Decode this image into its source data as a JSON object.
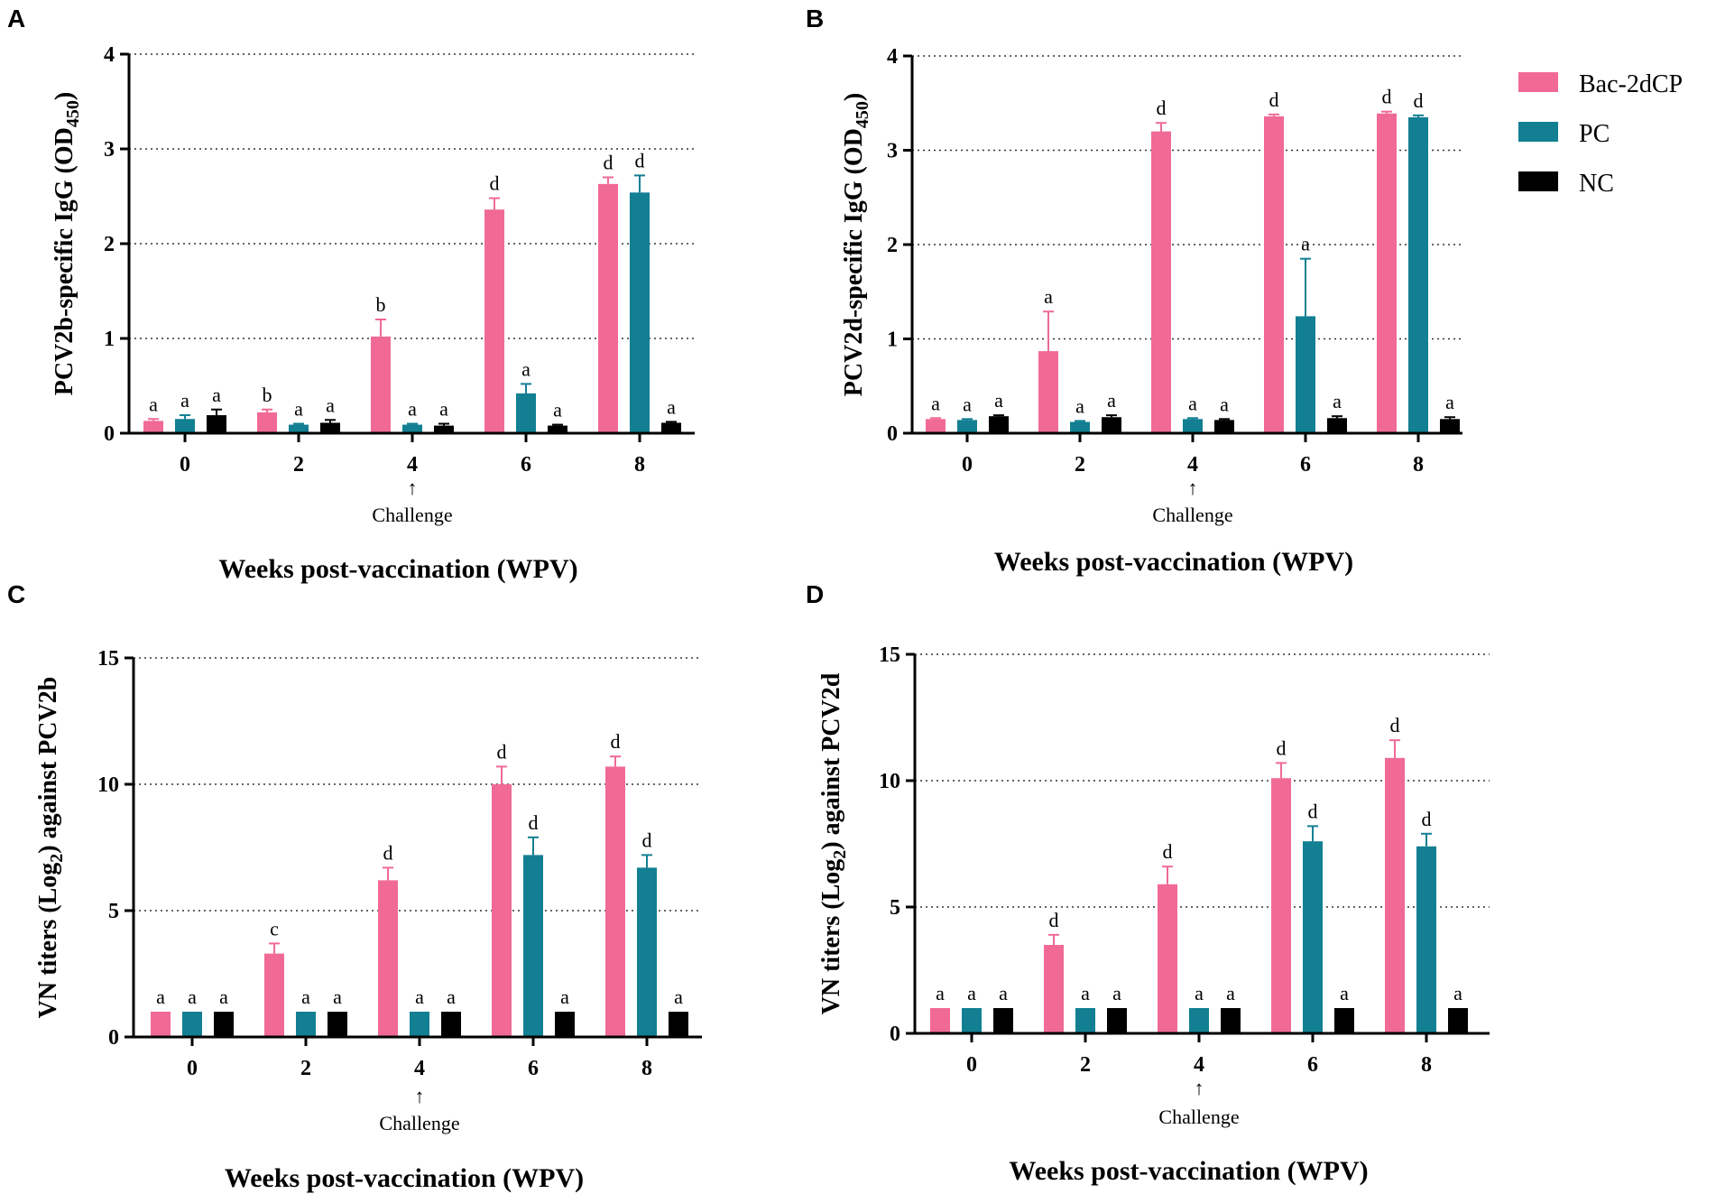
{
  "legend": {
    "items": [
      {
        "name": "Bac-2dCP",
        "color": "#f06a95"
      },
      {
        "name": "PC",
        "color": "#127f92"
      },
      {
        "name": "NC",
        "color": "#000000"
      }
    ]
  },
  "chart_data": [
    {
      "panel": "A",
      "type": "bar",
      "title": "",
      "xlabel": "Weeks post-vaccination (WPV)",
      "ylabel_main": "PCV2b-specific IgG (OD",
      "ylabel_sub": "450",
      "ylabel_end": ")",
      "ylim": [
        0,
        4
      ],
      "yticks": [
        0,
        1,
        2,
        3,
        4
      ],
      "categories": [
        "0",
        "2",
        "4",
        "6",
        "8"
      ],
      "annotation": {
        "category": "4",
        "arrow": "↑",
        "text": "Challenge"
      },
      "series": [
        {
          "name": "Bac-2dCP",
          "color": "#f06a95",
          "values": [
            0.13,
            0.22,
            1.02,
            2.36,
            2.63
          ],
          "errors": [
            0.02,
            0.03,
            0.18,
            0.12,
            0.07
          ],
          "labels": [
            "a",
            "b",
            "b",
            "d",
            "d"
          ]
        },
        {
          "name": "PC",
          "color": "#127f92",
          "values": [
            0.15,
            0.09,
            0.09,
            0.42,
            2.54
          ],
          "errors": [
            0.04,
            0.01,
            0.01,
            0.1,
            0.18
          ],
          "labels": [
            "a",
            "a",
            "a",
            "a",
            "d"
          ]
        },
        {
          "name": "NC",
          "color": "#000000",
          "values": [
            0.19,
            0.11,
            0.08,
            0.08,
            0.11
          ],
          "errors": [
            0.06,
            0.03,
            0.02,
            0.01,
            0.01
          ],
          "labels": [
            "a",
            "a",
            "a",
            "a",
            "a"
          ]
        }
      ]
    },
    {
      "panel": "B",
      "type": "bar",
      "title": "",
      "xlabel": "Weeks post-vaccination (WPV)",
      "ylabel_main": "PCV2d-specific IgG (OD",
      "ylabel_sub": "450",
      "ylabel_end": ")",
      "ylim": [
        0,
        4
      ],
      "yticks": [
        0,
        1,
        2,
        3,
        4
      ],
      "categories": [
        "0",
        "2",
        "4",
        "6",
        "8"
      ],
      "annotation": {
        "category": "4",
        "arrow": "↑",
        "text": "Challenge"
      },
      "series": [
        {
          "name": "Bac-2dCP",
          "color": "#f06a95",
          "values": [
            0.15,
            0.87,
            3.2,
            3.36,
            3.39
          ],
          "errors": [
            0.01,
            0.42,
            0.09,
            0.02,
            0.02
          ],
          "labels": [
            "a",
            "a",
            "d",
            "d",
            "d"
          ]
        },
        {
          "name": "PC",
          "color": "#127f92",
          "values": [
            0.14,
            0.12,
            0.15,
            1.24,
            3.35
          ],
          "errors": [
            0.01,
            0.01,
            0.01,
            0.61,
            0.02
          ],
          "labels": [
            "a",
            "a",
            "a",
            "a",
            "d"
          ]
        },
        {
          "name": "NC",
          "color": "#000000",
          "values": [
            0.18,
            0.17,
            0.14,
            0.16,
            0.15
          ],
          "errors": [
            0.01,
            0.02,
            0.01,
            0.02,
            0.02
          ],
          "labels": [
            "a",
            "a",
            "a",
            "a",
            "a"
          ]
        }
      ]
    },
    {
      "panel": "C",
      "type": "bar",
      "title": "",
      "xlabel": "Weeks post-vaccination (WPV)",
      "ylabel_main": "VN titers (Log",
      "ylabel_sub": "2",
      "ylabel_end": ") against PCV2b",
      "ylim": [
        0,
        15
      ],
      "yticks": [
        0,
        5,
        10,
        15
      ],
      "categories": [
        "0",
        "2",
        "4",
        "6",
        "8"
      ],
      "annotation": {
        "category": "4",
        "arrow": "↑",
        "text": "Challenge"
      },
      "series": [
        {
          "name": "Bac-2dCP",
          "color": "#f06a95",
          "values": [
            1,
            3.3,
            6.2,
            10,
            10.7
          ],
          "errors": [
            0,
            0.4,
            0.5,
            0.7,
            0.4
          ],
          "labels": [
            "a",
            "c",
            "d",
            "d",
            "d"
          ]
        },
        {
          "name": "PC",
          "color": "#127f92",
          "values": [
            1,
            1,
            1,
            7.2,
            6.7
          ],
          "errors": [
            0,
            0,
            0,
            0.7,
            0.5
          ],
          "labels": [
            "a",
            "a",
            "a",
            "d",
            "d"
          ]
        },
        {
          "name": "NC",
          "color": "#000000",
          "values": [
            1,
            1,
            1,
            1,
            1
          ],
          "errors": [
            0,
            0,
            0,
            0,
            0
          ],
          "labels": [
            "a",
            "a",
            "a",
            "a",
            "a"
          ]
        }
      ]
    },
    {
      "panel": "D",
      "type": "bar",
      "title": "",
      "xlabel": "Weeks post-vaccination (WPV)",
      "ylabel_main": "VN titers (Log",
      "ylabel_sub": "2",
      "ylabel_end": ") against PCV2d",
      "ylim": [
        0,
        15
      ],
      "yticks": [
        0,
        5,
        10,
        15
      ],
      "categories": [
        "0",
        "2",
        "4",
        "6",
        "8"
      ],
      "annotation": {
        "category": "4",
        "arrow": "↑",
        "text": "Challenge"
      },
      "series": [
        {
          "name": "Bac-2dCP",
          "color": "#f06a95",
          "values": [
            1,
            3.5,
            5.9,
            10.1,
            10.9
          ],
          "errors": [
            0,
            0.4,
            0.7,
            0.6,
            0.7
          ],
          "labels": [
            "a",
            "d",
            "d",
            "d",
            "d"
          ]
        },
        {
          "name": "PC",
          "color": "#127f92",
          "values": [
            1,
            1,
            1,
            7.6,
            7.4
          ],
          "errors": [
            0,
            0,
            0,
            0.6,
            0.5
          ],
          "labels": [
            "a",
            "a",
            "a",
            "d",
            "d"
          ]
        },
        {
          "name": "NC",
          "color": "#000000",
          "values": [
            1,
            1,
            1,
            1,
            1
          ],
          "errors": [
            0,
            0,
            0,
            0,
            0
          ],
          "labels": [
            "a",
            "a",
            "a",
            "a",
            "a"
          ]
        }
      ]
    }
  ]
}
